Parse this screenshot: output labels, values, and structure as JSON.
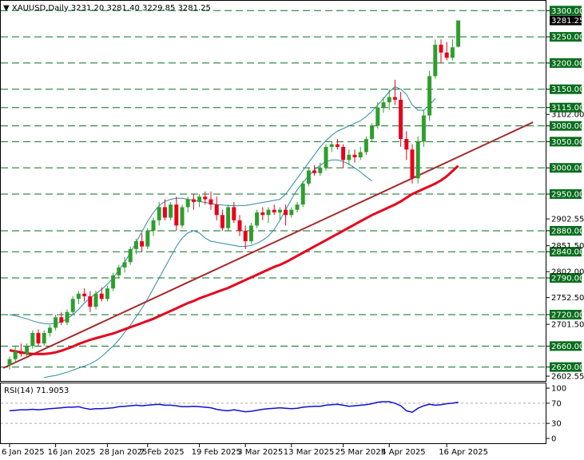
{
  "header": {
    "symbol": "XAUUSD,Daily",
    "ohlc": "3231.20 3281.40 3229.85 3281.25"
  },
  "colors": {
    "up": "#2e9e2e",
    "down": "#e8001c",
    "ma_slow": "#e8001c",
    "trendline": "#a52a2a",
    "bollinger": "#2e8b9e",
    "rsi": "#1010d0",
    "hline": "#0a6e1e",
    "price_tag_bg": "#000000",
    "price_tag_fg": "#ffffff"
  },
  "price_axis": {
    "ticks": [
      "2602.55",
      "2620.00",
      "2660.00",
      "2701.50",
      "2720.00",
      "2752.50",
      "2790.00",
      "2802.00",
      "2840.00",
      "2851.50",
      "2880.00",
      "2902.55",
      "2950.00",
      "3000.00",
      "3050.00",
      "3080.00",
      "3102.00",
      "3115.00",
      "3150.00",
      "3200.00",
      "3250.00",
      "3300.00"
    ],
    "tagged": [
      "2620.00",
      "2660.00",
      "2720.00",
      "2790.00",
      "2840.00",
      "2880.00",
      "2950.00",
      "3000.00",
      "3050.00",
      "3080.00",
      "3115.00",
      "3150.00",
      "3200.00",
      "3250.00",
      "3300.00"
    ],
    "current_price": "3281.25"
  },
  "rsi_panel": {
    "label": "RSI(14) 71.9053",
    "ticks": [
      "100",
      "70",
      "30",
      "0"
    ]
  },
  "date_axis": {
    "labels": [
      "6 Jan 2025",
      "16 Jan 2025",
      "28 Jan 2025",
      "7 Feb 2025",
      "19 Feb 2025",
      "3 Mar 2025",
      "13 Mar 2025",
      "25 Mar 2025",
      "4 Apr 2025",
      "16 Apr 2025"
    ]
  },
  "chart_data": {
    "type": "candlestick",
    "title": "XAUUSD,Daily",
    "ylim": [
      2595,
      3305
    ],
    "horizontal_levels": [
      2620,
      2660,
      2720,
      2790,
      2840,
      2880,
      2950,
      3000,
      3050,
      3080,
      3115,
      3150,
      3200,
      3250,
      3300
    ],
    "candles": [
      {
        "o": 2625,
        "h": 2640,
        "l": 2615,
        "c": 2635
      },
      {
        "o": 2635,
        "h": 2660,
        "l": 2628,
        "c": 2650
      },
      {
        "o": 2650,
        "h": 2665,
        "l": 2640,
        "c": 2645
      },
      {
        "o": 2645,
        "h": 2665,
        "l": 2640,
        "c": 2660
      },
      {
        "o": 2660,
        "h": 2690,
        "l": 2655,
        "c": 2685
      },
      {
        "o": 2685,
        "h": 2692,
        "l": 2660,
        "c": 2665
      },
      {
        "o": 2665,
        "h": 2690,
        "l": 2660,
        "c": 2685
      },
      {
        "o": 2685,
        "h": 2700,
        "l": 2678,
        "c": 2695
      },
      {
        "o": 2695,
        "h": 2720,
        "l": 2690,
        "c": 2715
      },
      {
        "o": 2715,
        "h": 2725,
        "l": 2700,
        "c": 2705
      },
      {
        "o": 2705,
        "h": 2730,
        "l": 2700,
        "c": 2725
      },
      {
        "o": 2725,
        "h": 2755,
        "l": 2720,
        "c": 2750
      },
      {
        "o": 2750,
        "h": 2765,
        "l": 2740,
        "c": 2760
      },
      {
        "o": 2760,
        "h": 2770,
        "l": 2745,
        "c": 2755
      },
      {
        "o": 2755,
        "h": 2765,
        "l": 2725,
        "c": 2735
      },
      {
        "o": 2735,
        "h": 2765,
        "l": 2730,
        "c": 2760
      },
      {
        "o": 2760,
        "h": 2772,
        "l": 2745,
        "c": 2750
      },
      {
        "o": 2750,
        "h": 2775,
        "l": 2745,
        "c": 2770
      },
      {
        "o": 2770,
        "h": 2800,
        "l": 2765,
        "c": 2795
      },
      {
        "o": 2795,
        "h": 2815,
        "l": 2790,
        "c": 2810
      },
      {
        "o": 2810,
        "h": 2830,
        "l": 2800,
        "c": 2820
      },
      {
        "o": 2820,
        "h": 2850,
        "l": 2815,
        "c": 2845
      },
      {
        "o": 2845,
        "h": 2865,
        "l": 2835,
        "c": 2860
      },
      {
        "o": 2860,
        "h": 2875,
        "l": 2840,
        "c": 2850
      },
      {
        "o": 2850,
        "h": 2885,
        "l": 2845,
        "c": 2880
      },
      {
        "o": 2880,
        "h": 2905,
        "l": 2870,
        "c": 2900
      },
      {
        "o": 2900,
        "h": 2935,
        "l": 2890,
        "c": 2925
      },
      {
        "o": 2925,
        "h": 2940,
        "l": 2900,
        "c": 2905
      },
      {
        "o": 2905,
        "h": 2935,
        "l": 2900,
        "c": 2930
      },
      {
        "o": 2930,
        "h": 2945,
        "l": 2880,
        "c": 2890
      },
      {
        "o": 2890,
        "h": 2930,
        "l": 2885,
        "c": 2925
      },
      {
        "o": 2925,
        "h": 2945,
        "l": 2915,
        "c": 2940
      },
      {
        "o": 2940,
        "h": 2950,
        "l": 2920,
        "c": 2935
      },
      {
        "o": 2935,
        "h": 2950,
        "l": 2925,
        "c": 2945
      },
      {
        "o": 2945,
        "h": 2955,
        "l": 2930,
        "c": 2940
      },
      {
        "o": 2940,
        "h": 2955,
        "l": 2920,
        "c": 2930
      },
      {
        "o": 2930,
        "h": 2945,
        "l": 2900,
        "c": 2910
      },
      {
        "o": 2910,
        "h": 2920,
        "l": 2880,
        "c": 2885
      },
      {
        "o": 2885,
        "h": 2930,
        "l": 2880,
        "c": 2925
      },
      {
        "o": 2925,
        "h": 2935,
        "l": 2895,
        "c": 2900
      },
      {
        "o": 2900,
        "h": 2910,
        "l": 2870,
        "c": 2880
      },
      {
        "o": 2880,
        "h": 2890,
        "l": 2845,
        "c": 2860
      },
      {
        "o": 2860,
        "h": 2895,
        "l": 2855,
        "c": 2890
      },
      {
        "o": 2890,
        "h": 2920,
        "l": 2885,
        "c": 2915
      },
      {
        "o": 2915,
        "h": 2925,
        "l": 2900,
        "c": 2910
      },
      {
        "o": 2910,
        "h": 2925,
        "l": 2895,
        "c": 2920
      },
      {
        "o": 2920,
        "h": 2930,
        "l": 2910,
        "c": 2915
      },
      {
        "o": 2915,
        "h": 2925,
        "l": 2900,
        "c": 2920
      },
      {
        "o": 2920,
        "h": 2930,
        "l": 2890,
        "c": 2910
      },
      {
        "o": 2910,
        "h": 2925,
        "l": 2905,
        "c": 2920
      },
      {
        "o": 2920,
        "h": 2935,
        "l": 2915,
        "c": 2930
      },
      {
        "o": 2930,
        "h": 2975,
        "l": 2925,
        "c": 2970
      },
      {
        "o": 2970,
        "h": 3000,
        "l": 2965,
        "c": 2995
      },
      {
        "o": 2995,
        "h": 3005,
        "l": 2985,
        "c": 2990
      },
      {
        "o": 2990,
        "h": 3010,
        "l": 2985,
        "c": 3000
      },
      {
        "o": 3000,
        "h": 3045,
        "l": 2995,
        "c": 3040
      },
      {
        "o": 3040,
        "h": 3050,
        "l": 3030,
        "c": 3045
      },
      {
        "o": 3045,
        "h": 3055,
        "l": 3035,
        "c": 3040
      },
      {
        "o": 3040,
        "h": 3045,
        "l": 3000,
        "c": 3015
      },
      {
        "o": 3015,
        "h": 3035,
        "l": 3005,
        "c": 3025
      },
      {
        "o": 3025,
        "h": 3035,
        "l": 3010,
        "c": 3020
      },
      {
        "o": 3020,
        "h": 3040,
        "l": 3015,
        "c": 3030
      },
      {
        "o": 3030,
        "h": 3060,
        "l": 3025,
        "c": 3055
      },
      {
        "o": 3055,
        "h": 3085,
        "l": 3050,
        "c": 3080
      },
      {
        "o": 3080,
        "h": 3125,
        "l": 3075,
        "c": 3115
      },
      {
        "o": 3115,
        "h": 3135,
        "l": 3105,
        "c": 3125
      },
      {
        "o": 3125,
        "h": 3150,
        "l": 3110,
        "c": 3135
      },
      {
        "o": 3135,
        "h": 3168,
        "l": 3120,
        "c": 3130
      },
      {
        "o": 3130,
        "h": 3145,
        "l": 3040,
        "c": 3055
      },
      {
        "o": 3055,
        "h": 3070,
        "l": 3015,
        "c": 3035
      },
      {
        "o": 3035,
        "h": 3045,
        "l": 2970,
        "c": 2980
      },
      {
        "o": 2980,
        "h": 3060,
        "l": 2970,
        "c": 3050
      },
      {
        "o": 3050,
        "h": 3110,
        "l": 3040,
        "c": 3100
      },
      {
        "o": 3100,
        "h": 3185,
        "l": 3090,
        "c": 3175
      },
      {
        "o": 3175,
        "h": 3245,
        "l": 3170,
        "c": 3235
      },
      {
        "o": 3235,
        "h": 3245,
        "l": 3200,
        "c": 3220
      },
      {
        "o": 3220,
        "h": 3240,
        "l": 3205,
        "c": 3210
      },
      {
        "o": 3210,
        "h": 3245,
        "l": 3205,
        "c": 3230
      },
      {
        "o": 3231.2,
        "h": 3281.4,
        "l": 3229.85,
        "c": 3281.25
      }
    ],
    "trendline": [
      [
        0,
        2618
      ],
      [
        91,
        3087
      ]
    ],
    "ma_slow": [
      2652,
      2650,
      2648,
      2646,
      2645,
      2645,
      2645,
      2646,
      2648,
      2651,
      2655,
      2659,
      2664,
      2668,
      2672,
      2675,
      2678,
      2681,
      2684,
      2688,
      2692,
      2696,
      2700,
      2704,
      2708,
      2712,
      2717,
      2722,
      2727,
      2732,
      2737,
      2742,
      2746,
      2751,
      2755,
      2759,
      2763,
      2767,
      2771,
      2776,
      2781,
      2786,
      2791,
      2796,
      2801,
      2806,
      2811,
      2815,
      2820,
      2826,
      2832,
      2838,
      2844,
      2850,
      2856,
      2862,
      2868,
      2874,
      2880,
      2886,
      2892,
      2898,
      2904,
      2910,
      2915,
      2920,
      2925,
      2930,
      2936,
      2943,
      2950,
      2955,
      2960,
      2965,
      2970,
      2976,
      2984,
      2994,
      3004
    ],
    "bb_upper": [
      2720,
      2718,
      2715,
      2712,
      2708,
      2705,
      2703,
      2702,
      2703,
      2706,
      2712,
      2720,
      2730,
      2742,
      2752,
      2760,
      2768,
      2778,
      2790,
      2805,
      2820,
      2838,
      2858,
      2878,
      2898,
      2915,
      2928,
      2936,
      2940,
      2942,
      2942,
      2940,
      2938,
      2936,
      2934,
      2932,
      2930,
      2929,
      2928,
      2928,
      2928,
      2928,
      2930,
      2932,
      2934,
      2936,
      2938,
      2940,
      2950,
      2965,
      2980,
      2995,
      3010,
      3025,
      3040,
      3052,
      3062,
      3070,
      3075,
      3080,
      3085,
      3090,
      3098,
      3108,
      3120,
      3132,
      3145,
      3155,
      3150,
      3140,
      3120,
      3110,
      3110,
      3120,
      3132
    ],
    "bb_lower": [
      2600,
      2602,
      2604,
      2607,
      2610,
      2614,
      2618,
      2622,
      2626,
      2632,
      2640,
      2650,
      2660,
      2672,
      2686,
      2700,
      2716,
      2732,
      2750,
      2770,
      2790,
      2810,
      2830,
      2850,
      2866,
      2876,
      2880,
      2876,
      2866,
      2860,
      2858,
      2856,
      2854,
      2852,
      2850,
      2850,
      2852,
      2856,
      2862,
      2870,
      2882,
      2900,
      2920,
      2940,
      2958,
      2972,
      2985,
      2996,
      3005,
      3012,
      3015,
      3015,
      3012,
      3007,
      3000,
      2992,
      2983,
      2975
    ],
    "bb_lower_start": 6,
    "bb_upper_start": 0,
    "rsi": [
      55,
      56,
      57,
      57,
      58,
      57,
      58,
      59,
      60,
      61,
      62,
      62,
      63,
      60,
      58,
      59,
      59,
      60,
      61,
      63,
      64,
      65,
      66,
      65,
      66,
      67,
      68,
      66,
      66,
      65,
      63,
      63,
      64,
      63,
      62,
      61,
      58,
      56,
      55,
      57,
      55,
      53,
      54,
      56,
      58,
      59,
      60,
      61,
      60,
      59,
      60,
      62,
      63,
      64,
      64,
      66,
      67,
      68,
      66,
      64,
      65,
      66,
      67,
      69,
      72,
      73,
      73,
      70,
      65,
      55,
      52,
      60,
      65,
      68,
      66,
      67,
      69,
      70,
      72
    ]
  }
}
